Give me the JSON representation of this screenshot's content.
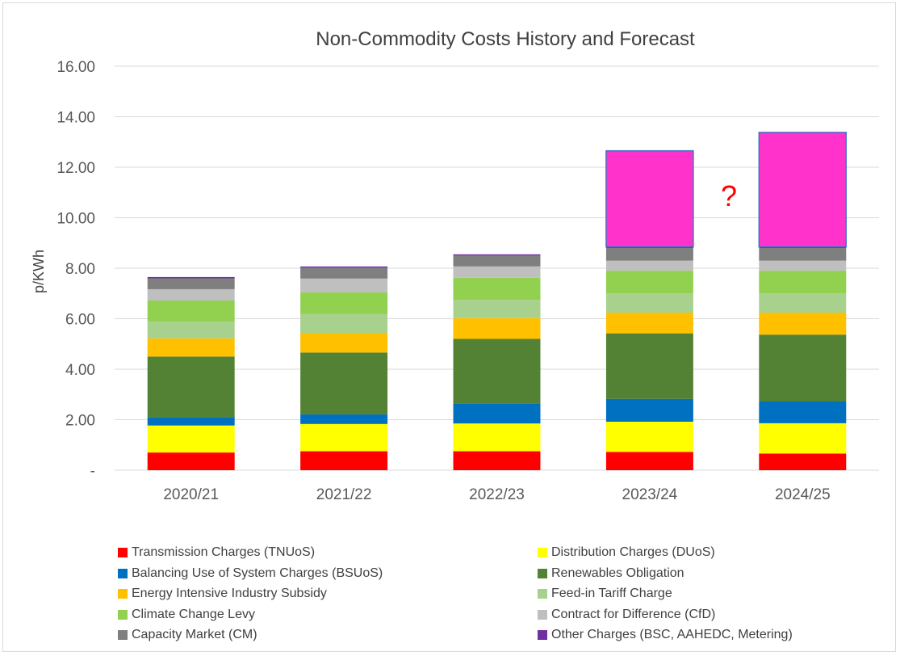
{
  "chart_data": {
    "type": "bar",
    "stacked": true,
    "title": "Non-Commodity Costs History and Forecast",
    "xlabel": "",
    "ylabel": "p/KWh",
    "ylim": [
      0,
      16
    ],
    "yticks": [
      0,
      2,
      4,
      6,
      8,
      10,
      12,
      14,
      16
    ],
    "ytick_labels": [
      "-",
      "2.00",
      "4.00",
      "6.00",
      "8.00",
      "10.00",
      "12.00",
      "14.00",
      "16.00"
    ],
    "grid": true,
    "legend_position": "bottom",
    "categories": [
      "2020/21",
      "2021/22",
      "2022/23",
      "2023/24",
      "2024/25"
    ],
    "series": [
      {
        "name": "Transmission Charges (TNUoS)",
        "color": "#ff0000",
        "values": [
          0.7,
          0.75,
          0.75,
          0.72,
          0.66
        ]
      },
      {
        "name": "Distribution Charges (DUoS)",
        "color": "#ffff00",
        "values": [
          1.07,
          1.08,
          1.1,
          1.2,
          1.2
        ]
      },
      {
        "name": "Balancing Use of System Charges (BSUoS)",
        "color": "#0070c0",
        "values": [
          0.33,
          0.38,
          0.8,
          0.9,
          0.86
        ]
      },
      {
        "name": "Renewables Obligation",
        "color": "#548235",
        "values": [
          2.4,
          2.45,
          2.55,
          2.6,
          2.65
        ]
      },
      {
        "name": "Energy Intensive Industry Subsidy",
        "color": "#ffc000",
        "values": [
          0.72,
          0.78,
          0.82,
          0.82,
          0.87
        ]
      },
      {
        "name": "Feed-in Tariff Charge",
        "color": "#a9d18e",
        "values": [
          0.67,
          0.74,
          0.73,
          0.76,
          0.76
        ]
      },
      {
        "name": "Climate Change Levy",
        "color": "#92d050",
        "values": [
          0.83,
          0.86,
          0.87,
          0.9,
          0.9
        ]
      },
      {
        "name": "Contract for Difference (CfD)",
        "color": "#bfbfbf",
        "values": [
          0.45,
          0.55,
          0.45,
          0.4,
          0.4
        ]
      },
      {
        "name": "Capacity Market (CM)",
        "color": "#7f7f7f",
        "values": [
          0.43,
          0.43,
          0.43,
          0.5,
          0.5
        ]
      },
      {
        "name": "Other Charges (BSC, AAHEDC, Metering)",
        "color": "#7030a0",
        "values": [
          0.05,
          0.05,
          0.05,
          0.05,
          0.05
        ]
      }
    ],
    "forecast_block": {
      "color": "#ff33cc",
      "border": "#4472c4",
      "categories": [
        "2023/24",
        "2024/25"
      ],
      "bottom": [
        8.85,
        8.85
      ],
      "top": [
        12.65,
        13.38
      ]
    },
    "annotation": {
      "text": "?",
      "color": "#ff0000"
    }
  }
}
